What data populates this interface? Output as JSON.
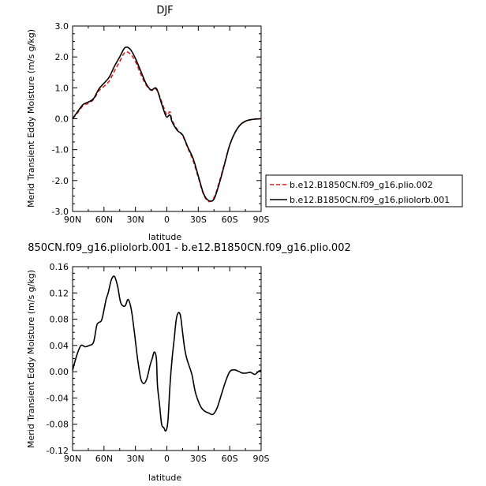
{
  "chart_data": [
    {
      "type": "line",
      "title": "DJF",
      "xlabel": "latitude",
      "ylabel": "Merid Transient Eddy Moisture (m/s g/kg)",
      "x_tick_labels": [
        "90N",
        "60N",
        "30N",
        "0",
        "30S",
        "60S",
        "90S"
      ],
      "x_tick_values": [
        90,
        60,
        30,
        0,
        -30,
        -60,
        -90
      ],
      "xlim": [
        90,
        -90
      ],
      "y_tick_labels": [
        "3.0",
        "2.0",
        "1.0",
        "0.0",
        "-1.0",
        "-2.0",
        "-3.0"
      ],
      "y_tick_values": [
        3,
        2,
        1,
        0,
        -1,
        -2,
        -3
      ],
      "ylim": [
        -3,
        3
      ],
      "legend_position": "right",
      "series": [
        {
          "name": "b.e12.B1850CN.f09_g16.plio.002",
          "color": "#d62020",
          "style": "dashed",
          "x": [
            90,
            85,
            80,
            75,
            70,
            65,
            60,
            55,
            50,
            45,
            40,
            35,
            30,
            25,
            20,
            15,
            10,
            5,
            2,
            0,
            -3,
            -5,
            -10,
            -15,
            -20,
            -25,
            -30,
            -35,
            -40,
            -45,
            -50,
            -55,
            -60,
            -65,
            -70,
            -75,
            -80,
            -85,
            -90
          ],
          "y": [
            0.0,
            0.2,
            0.42,
            0.5,
            0.62,
            0.9,
            1.05,
            1.22,
            1.55,
            1.85,
            2.15,
            2.1,
            1.85,
            1.45,
            1.1,
            0.92,
            0.95,
            0.55,
            0.28,
            0.12,
            0.22,
            -0.05,
            -0.35,
            -0.55,
            -0.95,
            -1.35,
            -1.9,
            -2.45,
            -2.68,
            -2.55,
            -2.05,
            -1.45,
            -0.85,
            -0.45,
            -0.2,
            -0.08,
            -0.03,
            -0.01,
            0.0
          ]
        },
        {
          "name": "b.e12.B1850CN.f09_g16.pliolorb.001",
          "color": "#000000",
          "style": "solid",
          "x": [
            90,
            85,
            80,
            75,
            70,
            65,
            60,
            55,
            50,
            45,
            40,
            35,
            30,
            25,
            20,
            15,
            10,
            5,
            2,
            0,
            -3,
            -5,
            -10,
            -15,
            -20,
            -25,
            -30,
            -35,
            -40,
            -45,
            -50,
            -55,
            -60,
            -65,
            -70,
            -75,
            -80,
            -85,
            -90
          ],
          "y": [
            0.0,
            0.24,
            0.46,
            0.54,
            0.65,
            0.96,
            1.15,
            1.35,
            1.7,
            2.0,
            2.3,
            2.25,
            1.95,
            1.55,
            1.15,
            0.93,
            0.98,
            0.48,
            0.18,
            0.05,
            0.12,
            -0.1,
            -0.38,
            -0.52,
            -0.92,
            -1.28,
            -1.85,
            -2.42,
            -2.65,
            -2.6,
            -2.1,
            -1.48,
            -0.85,
            -0.45,
            -0.2,
            -0.08,
            -0.03,
            -0.01,
            0.0
          ]
        }
      ]
    },
    {
      "type": "line",
      "title": "850CN.f09_g16.pliolorb.001 - b.e12.B1850CN.f09_g16.plio.002",
      "xlabel": "latitude",
      "ylabel": "Merid Transient Eddy Moisture (m/s g/kg)",
      "x_tick_labels": [
        "90N",
        "60N",
        "30N",
        "0",
        "30S",
        "60S",
        "90S"
      ],
      "x_tick_values": [
        90,
        60,
        30,
        0,
        -30,
        -60,
        -90
      ],
      "xlim": [
        90,
        -90
      ],
      "y_tick_labels": [
        "0.16",
        "0.12",
        "0.08",
        "0.04",
        "0.00",
        "-0.04",
        "-0.08",
        "-0.12"
      ],
      "y_tick_values": [
        0.16,
        0.12,
        0.08,
        0.04,
        0.0,
        -0.04,
        -0.08,
        -0.12
      ],
      "ylim": [
        -0.12,
        0.16
      ],
      "series": [
        {
          "color": "#000000",
          "style": "solid",
          "x": [
            90,
            86,
            82,
            78,
            74,
            70,
            67,
            65,
            62,
            58,
            56,
            53,
            50,
            47,
            44,
            40,
            37,
            34,
            31,
            28,
            25,
            22,
            19,
            16,
            14,
            12,
            10,
            9,
            7,
            5,
            3,
            1,
            -1,
            -3,
            -5,
            -7,
            -9,
            -11,
            -13,
            -15,
            -17,
            -19,
            -21,
            -24,
            -27,
            -30,
            -33,
            -36,
            -40,
            -44,
            -48,
            -52,
            -56,
            -60,
            -64,
            -68,
            -72,
            -76,
            -80,
            -84,
            -88,
            -90
          ],
          "y": [
            0.002,
            0.025,
            0.04,
            0.038,
            0.04,
            0.045,
            0.07,
            0.075,
            0.08,
            0.11,
            0.12,
            0.14,
            0.145,
            0.13,
            0.105,
            0.1,
            0.11,
            0.095,
            0.06,
            0.02,
            -0.01,
            -0.018,
            -0.01,
            0.01,
            0.02,
            0.03,
            0.02,
            -0.02,
            -0.05,
            -0.08,
            -0.085,
            -0.09,
            -0.075,
            -0.02,
            0.02,
            0.05,
            0.08,
            0.09,
            0.085,
            0.06,
            0.035,
            0.02,
            0.01,
            -0.005,
            -0.03,
            -0.045,
            -0.055,
            -0.06,
            -0.063,
            -0.065,
            -0.055,
            -0.035,
            -0.015,
            0.0,
            0.003,
            0.001,
            -0.002,
            -0.002,
            -0.001,
            -0.004,
            0.001,
            0.002
          ]
        }
      ]
    }
  ]
}
